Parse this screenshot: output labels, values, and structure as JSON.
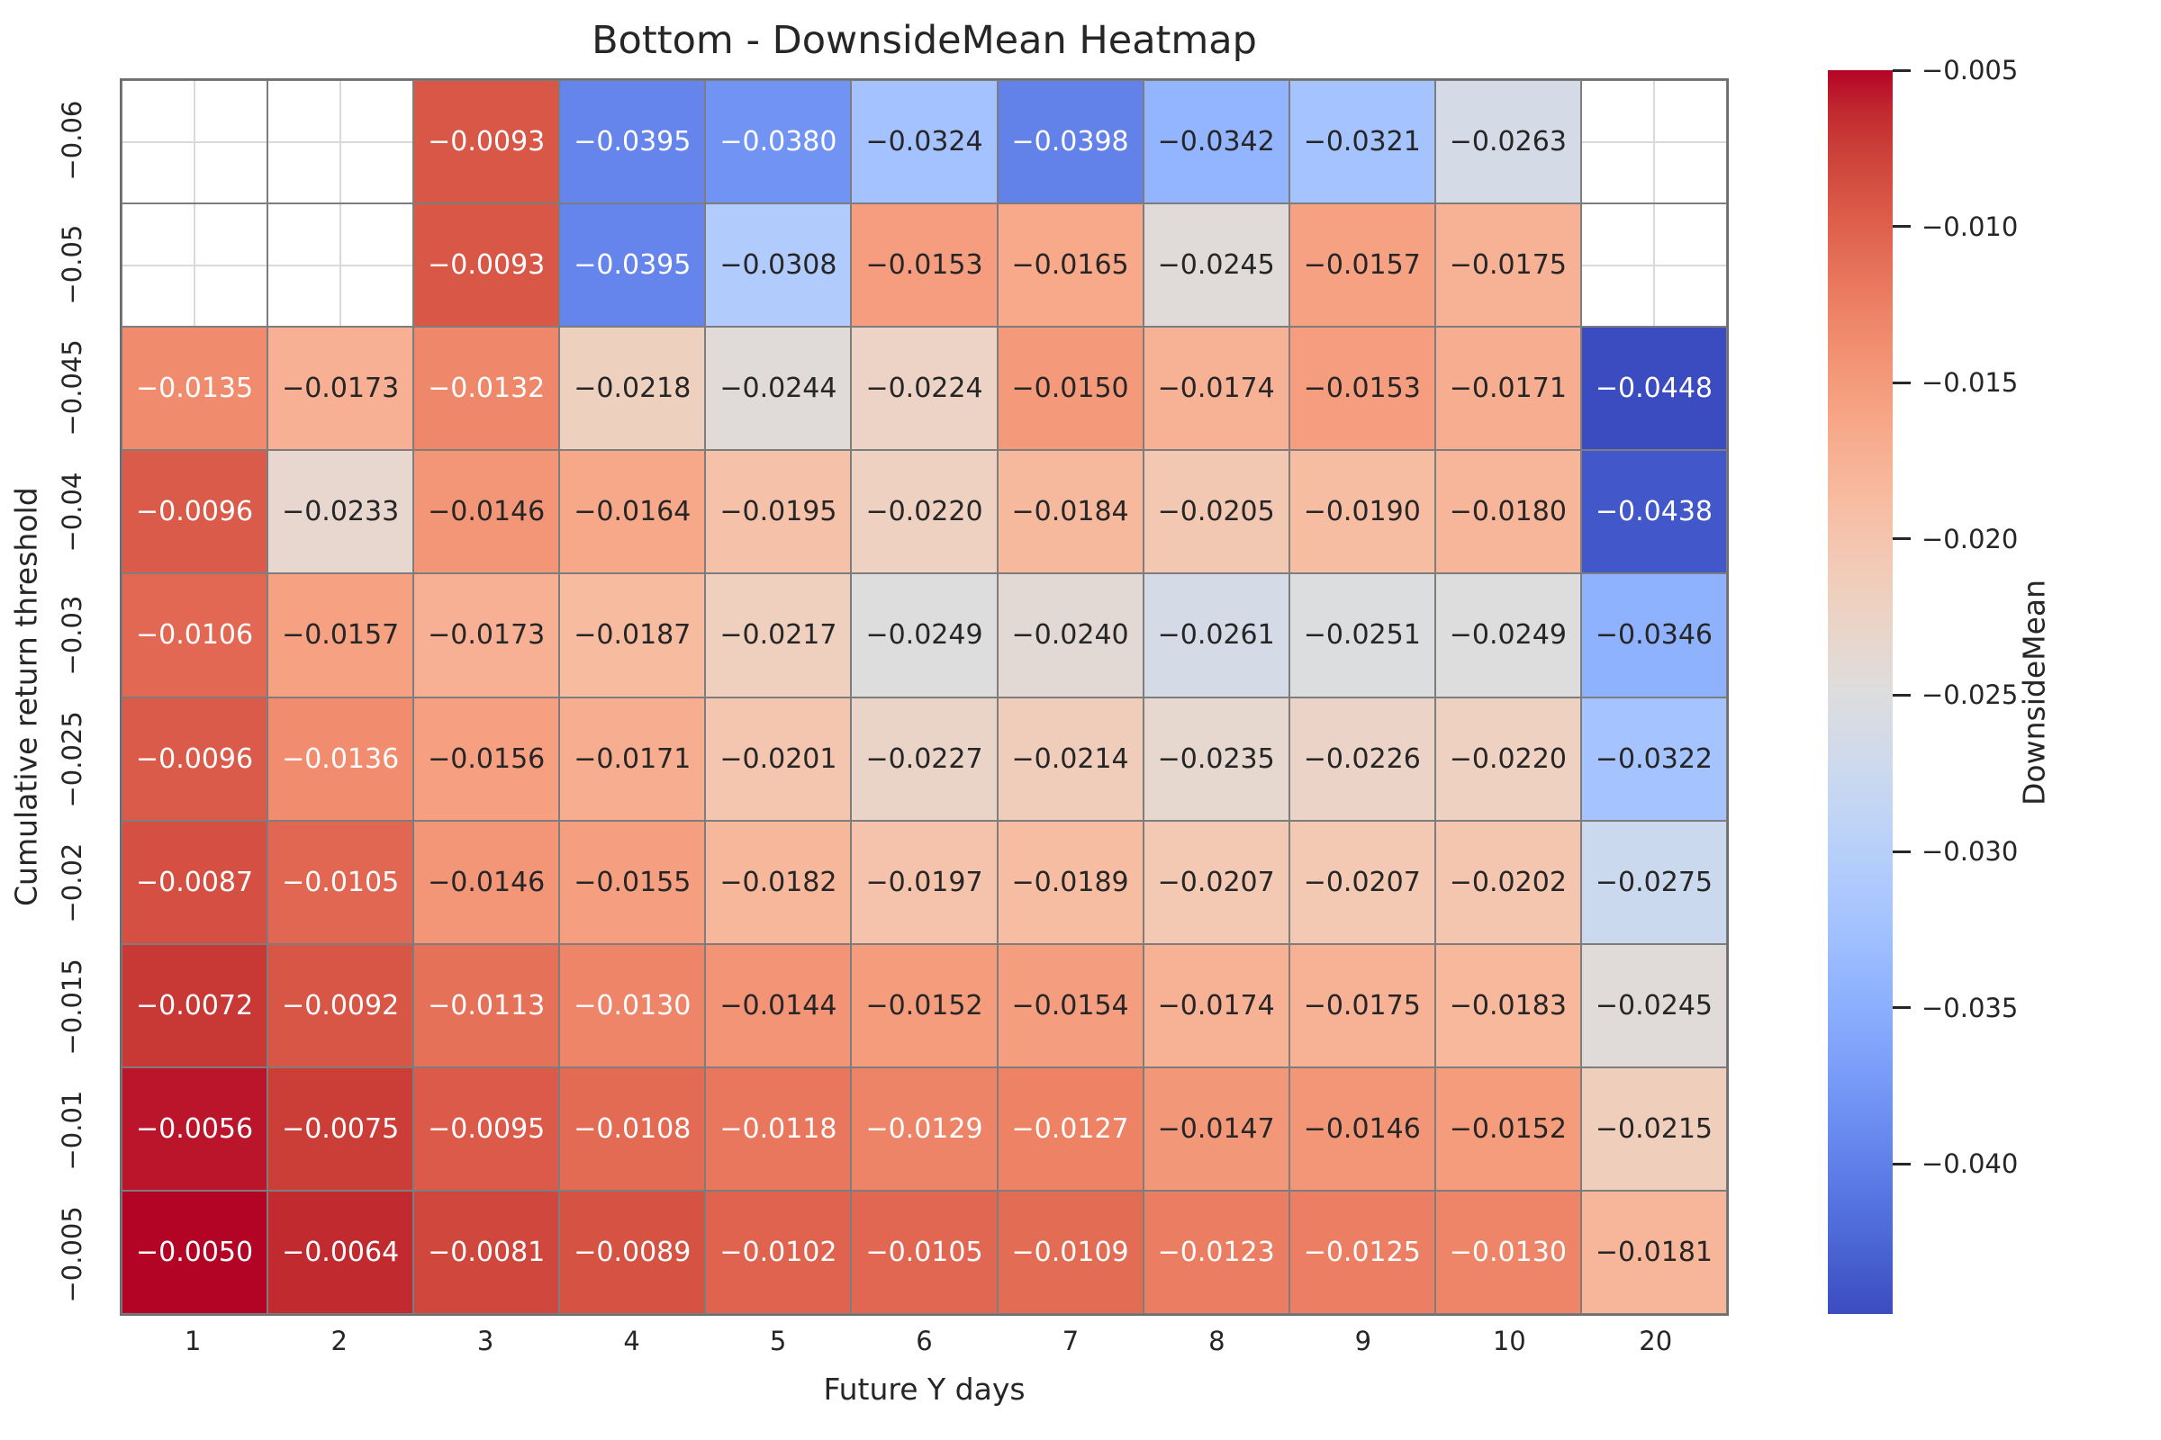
{
  "title": "Bottom - DownsideMean Heatmap",
  "xlabel": "Future Y days",
  "ylabel": "Cumulative return threshold",
  "colorbar": {
    "label": "DownsideMean",
    "ticks": [
      "-0.005",
      "-0.010",
      "-0.015",
      "-0.020",
      "-0.025",
      "-0.030",
      "-0.035",
      "-0.040"
    ]
  },
  "colors": {
    "text": "#262626",
    "mesh_line": "#7d7d7d",
    "grid_line": "#d9d9d9",
    "colormap_low": "#3b4cc0",
    "colormap_mid": "#dddddd",
    "colormap_high": "#b40426"
  },
  "chart_data": {
    "type": "heatmap",
    "title": "Bottom - DownsideMean Heatmap",
    "xlabel": "Future Y days",
    "ylabel": "Cumulative return threshold",
    "colormap": "coolwarm",
    "vmin": -0.0448,
    "vmax": -0.005,
    "colorbar_label": "DownsideMean",
    "annotation_decimals": 4,
    "x_categories": [
      "1",
      "2",
      "3",
      "4",
      "5",
      "6",
      "7",
      "8",
      "9",
      "10",
      "20"
    ],
    "y_categories": [
      "-0.06",
      "-0.05",
      "-0.045",
      "-0.04",
      "-0.03",
      "-0.025",
      "-0.02",
      "-0.015",
      "-0.01",
      "-0.005"
    ],
    "values": [
      [
        null,
        null,
        -0.0093,
        -0.0395,
        -0.038,
        -0.0324,
        -0.0398,
        -0.0342,
        -0.0321,
        -0.0263,
        null
      ],
      [
        null,
        null,
        -0.0093,
        -0.0395,
        -0.0308,
        -0.0153,
        -0.0165,
        -0.0245,
        -0.0157,
        -0.0175,
        null
      ],
      [
        -0.0135,
        -0.0173,
        -0.0132,
        -0.0218,
        -0.0244,
        -0.0224,
        -0.015,
        -0.0174,
        -0.0153,
        -0.0171,
        -0.0448
      ],
      [
        -0.0096,
        -0.0233,
        -0.0146,
        -0.0164,
        -0.0195,
        -0.022,
        -0.0184,
        -0.0205,
        -0.019,
        -0.018,
        -0.0438
      ],
      [
        -0.0106,
        -0.0157,
        -0.0173,
        -0.0187,
        -0.0217,
        -0.0249,
        -0.024,
        -0.0261,
        -0.0251,
        -0.0249,
        -0.0346
      ],
      [
        -0.0096,
        -0.0136,
        -0.0156,
        -0.0171,
        -0.0201,
        -0.0227,
        -0.0214,
        -0.0235,
        -0.0226,
        -0.022,
        -0.0322
      ],
      [
        -0.0087,
        -0.0105,
        -0.0146,
        -0.0155,
        -0.0182,
        -0.0197,
        -0.0189,
        -0.0207,
        -0.0207,
        -0.0202,
        -0.0275
      ],
      [
        -0.0072,
        -0.0092,
        -0.0113,
        -0.013,
        -0.0144,
        -0.0152,
        -0.0154,
        -0.0174,
        -0.0175,
        -0.0183,
        -0.0245
      ],
      [
        -0.0056,
        -0.0075,
        -0.0095,
        -0.0108,
        -0.0118,
        -0.0129,
        -0.0127,
        -0.0147,
        -0.0146,
        -0.0152,
        -0.0215
      ],
      [
        -0.005,
        -0.0064,
        -0.0081,
        -0.0089,
        -0.0102,
        -0.0105,
        -0.0109,
        -0.0123,
        -0.0125,
        -0.013,
        -0.0181
      ]
    ]
  }
}
